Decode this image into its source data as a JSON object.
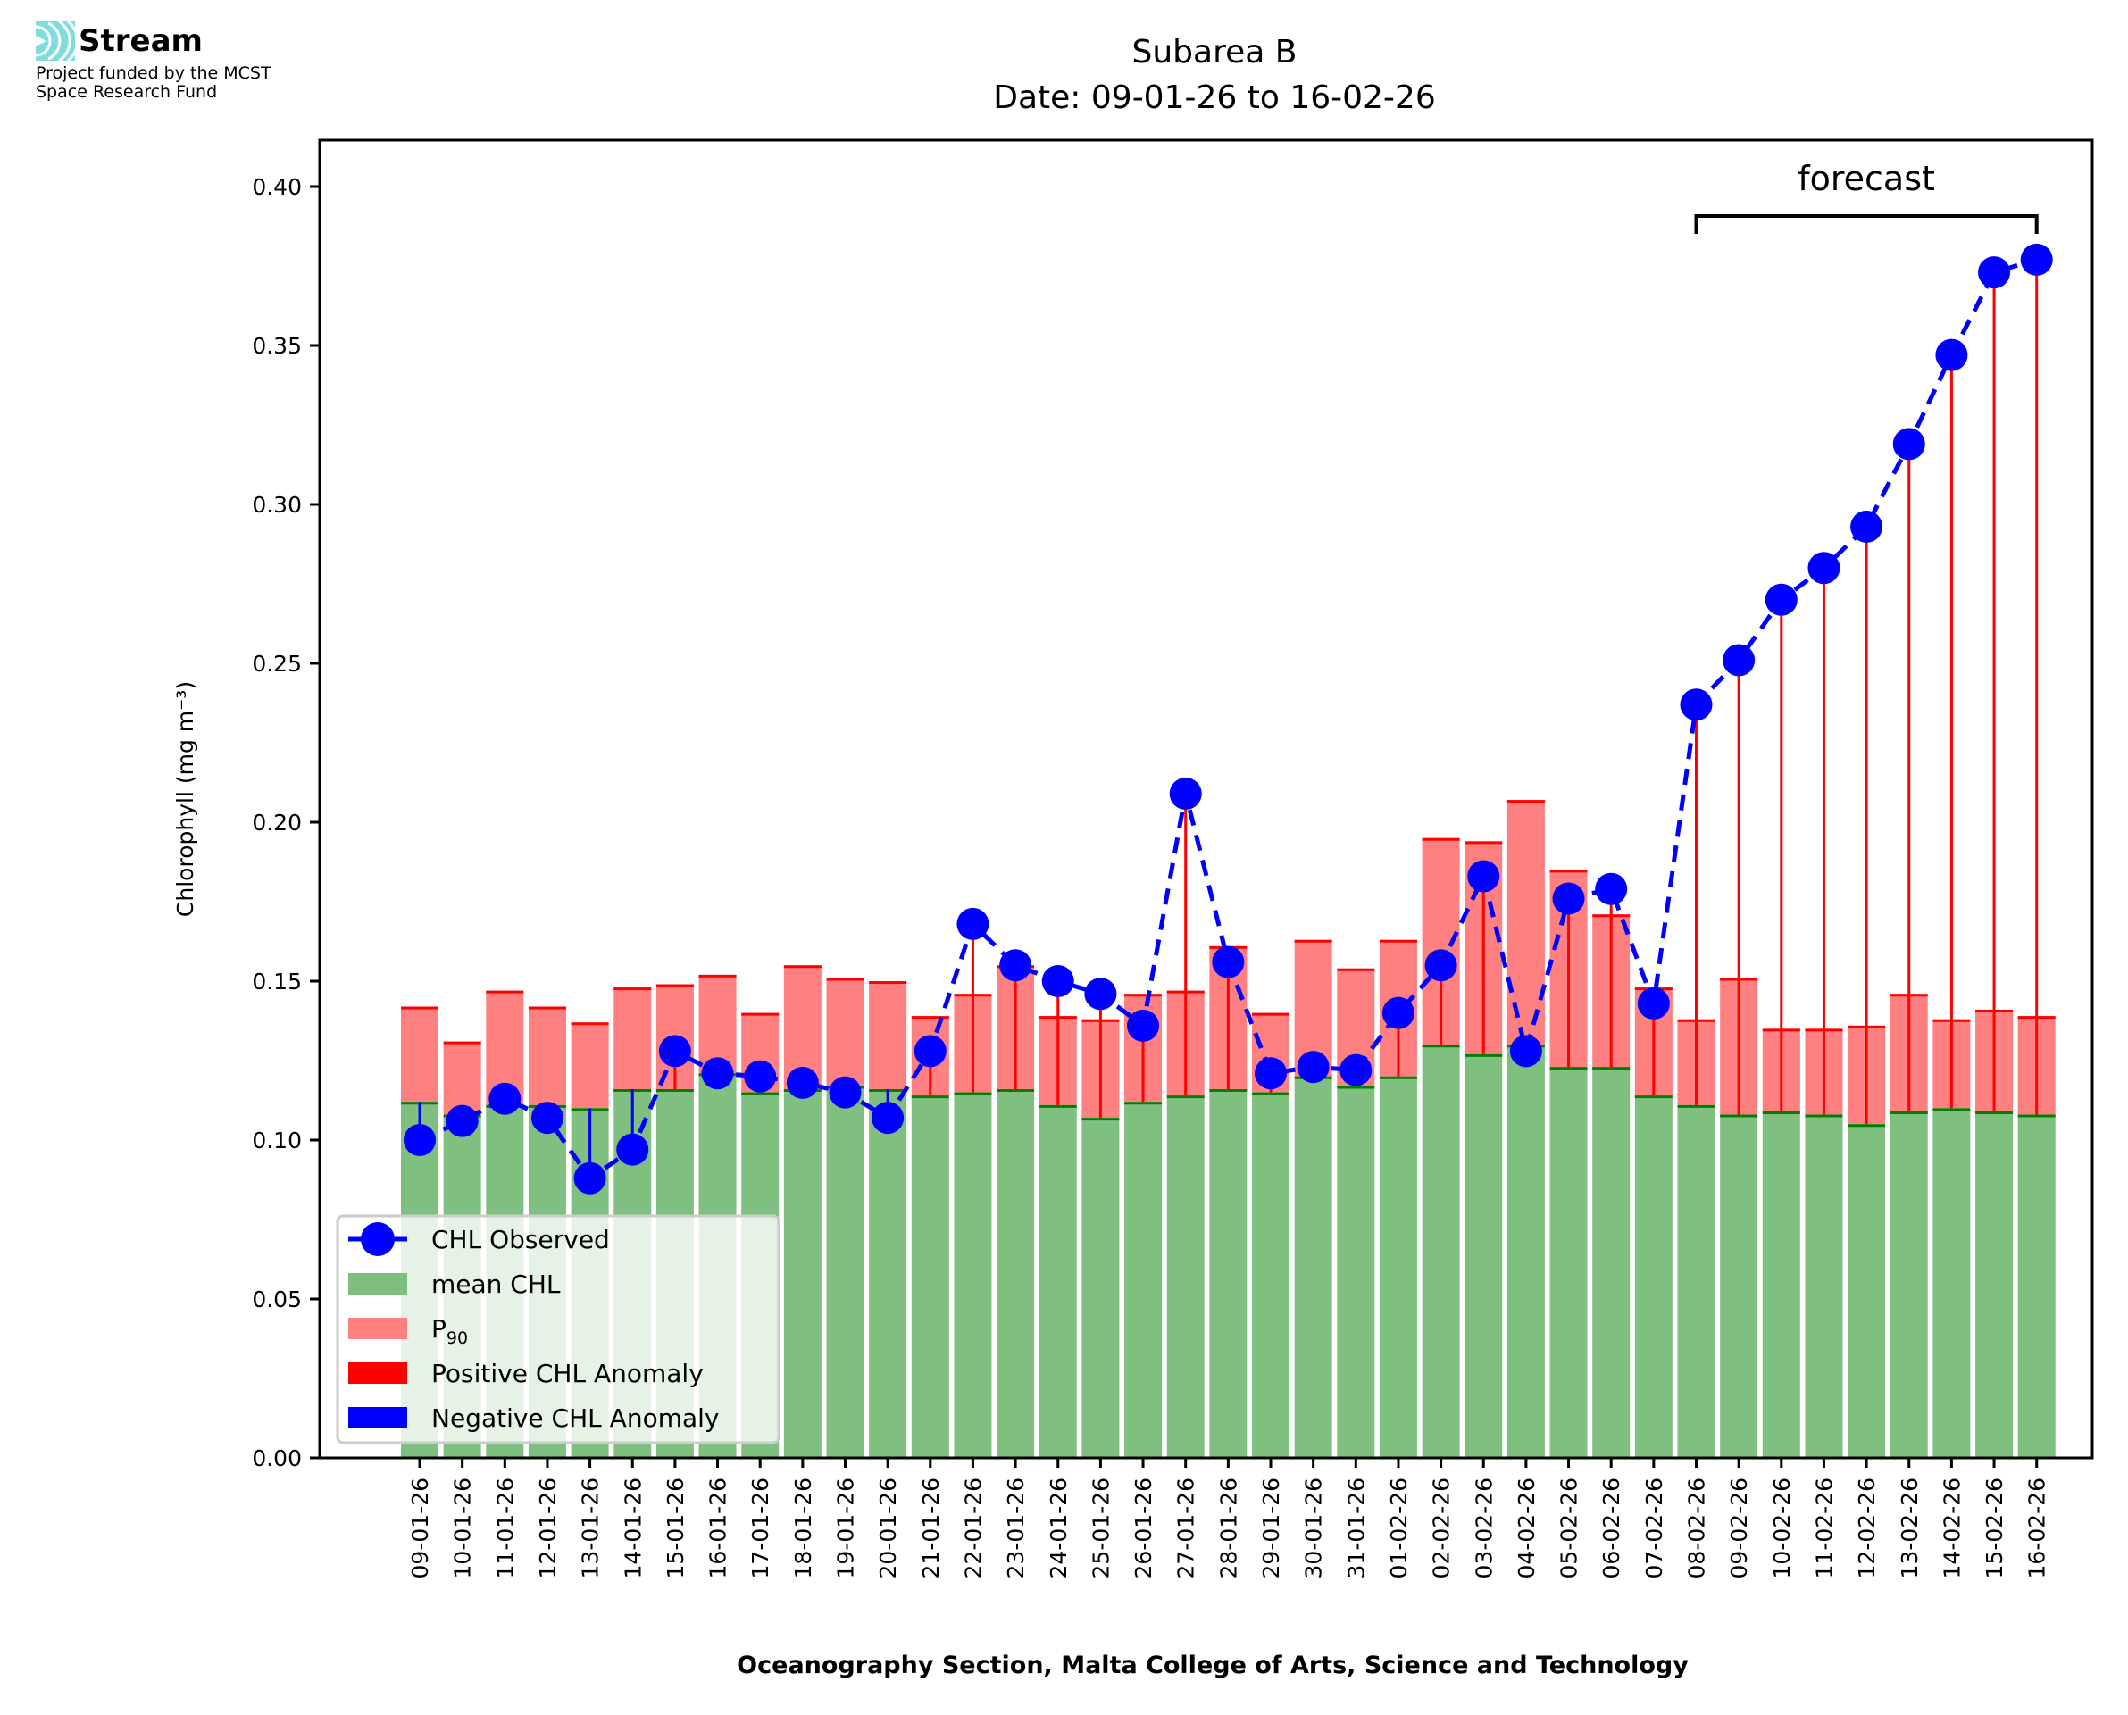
{
  "logo": {
    "name": "Stream",
    "subtitle_line1": "Project funded by the MCST",
    "subtitle_line2": "Space Research Fund",
    "accent": "#7fdedb"
  },
  "chart_data": {
    "type": "bar",
    "title": "Subarea B",
    "subtitle": "Date: 09-01-26 to 16-02-26",
    "xlabel": "Oceanography Section, Malta College of Arts, Science and Technology",
    "ylabel": "Chlorophyll (mg m⁻³)",
    "ylim": [
      0,
      0.415
    ],
    "yticks": [
      "0.00",
      "0.05",
      "0.10",
      "0.15",
      "0.20",
      "0.25",
      "0.30",
      "0.35",
      "0.40"
    ],
    "grid": false,
    "legend_position": "lower-left",
    "annotation": {
      "text": "forecast",
      "from": "08-02-26",
      "to": "16-02-26"
    },
    "categories": [
      "09-01-26",
      "10-01-26",
      "11-01-26",
      "12-01-26",
      "13-01-26",
      "14-01-26",
      "15-01-26",
      "16-01-26",
      "17-01-26",
      "18-01-26",
      "19-01-26",
      "20-01-26",
      "21-01-26",
      "22-01-26",
      "23-01-26",
      "24-01-26",
      "25-01-26",
      "26-01-26",
      "27-01-26",
      "28-01-26",
      "29-01-26",
      "30-01-26",
      "31-01-26",
      "01-02-26",
      "02-02-26",
      "03-02-26",
      "04-02-26",
      "05-02-26",
      "06-02-26",
      "07-02-26",
      "08-02-26",
      "09-02-26",
      "10-02-26",
      "11-02-26",
      "12-02-26",
      "13-02-26",
      "14-02-26",
      "15-02-26",
      "16-02-26"
    ],
    "series": [
      {
        "name": "CHL Observed",
        "color": "#0000ff",
        "values": [
          0.1,
          0.106,
          0.113,
          0.107,
          0.088,
          0.097,
          0.128,
          0.121,
          0.12,
          0.118,
          0.115,
          0.107,
          0.128,
          0.168,
          0.155,
          0.15,
          0.146,
          0.136,
          0.209,
          0.156,
          0.121,
          0.123,
          0.122,
          0.14,
          0.155,
          0.183,
          0.128,
          0.176,
          0.179,
          0.143,
          0.237,
          0.251,
          0.27,
          0.28,
          0.293,
          0.319,
          0.347,
          0.373,
          0.377
        ]
      },
      {
        "name": "mean CHL",
        "color": "#008000",
        "values": [
          0.112,
          0.108,
          0.111,
          0.111,
          0.11,
          0.116,
          0.116,
          0.121,
          0.115,
          0.116,
          0.117,
          0.116,
          0.114,
          0.115,
          0.116,
          0.111,
          0.107,
          0.112,
          0.114,
          0.116,
          0.115,
          0.12,
          0.117,
          0.12,
          0.13,
          0.127,
          0.13,
          0.123,
          0.123,
          0.114,
          0.111,
          0.108,
          0.109,
          0.108,
          0.105,
          0.109,
          0.11,
          0.109,
          0.108
        ]
      },
      {
        "name": "P₉₀",
        "color": "#ff8080",
        "values": [
          0.142,
          0.131,
          0.147,
          0.142,
          0.137,
          0.148,
          0.149,
          0.152,
          0.14,
          0.155,
          0.151,
          0.15,
          0.139,
          0.146,
          0.155,
          0.139,
          0.138,
          0.146,
          0.147,
          0.161,
          0.14,
          0.163,
          0.154,
          0.163,
          0.195,
          0.194,
          0.207,
          0.185,
          0.171,
          0.148,
          0.138,
          0.151,
          0.135,
          0.135,
          0.136,
          0.146,
          0.138,
          0.141,
          0.139
        ]
      }
    ],
    "legend": [
      {
        "label": "CHL Observed",
        "kind": "line-marker",
        "color": "#0000ff"
      },
      {
        "label": "mean CHL",
        "kind": "patch",
        "color": "#7fbf7f"
      },
      {
        "label": "P",
        "sub": "90",
        "kind": "patch",
        "color": "#ff8080"
      },
      {
        "label": "Positive CHL Anomaly",
        "kind": "patch",
        "color": "#ff0000"
      },
      {
        "label": "Negative CHL Anomaly",
        "kind": "patch",
        "color": "#0000ff"
      }
    ]
  }
}
